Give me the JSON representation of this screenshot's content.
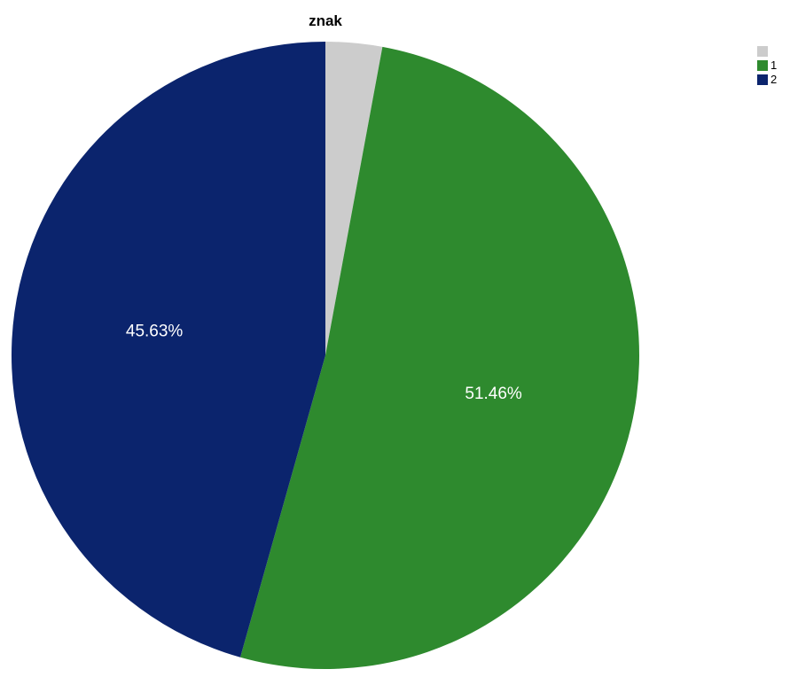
{
  "chart_data": {
    "type": "pie",
    "title": "znak",
    "legend_position": "top-right",
    "slices": [
      {
        "label": "",
        "value": 2.91,
        "value_label": "",
        "color": "#cccccc"
      },
      {
        "label": "1",
        "value": 51.46,
        "value_label": "51.46%",
        "color": "#2e8a2e"
      },
      {
        "label": "2",
        "value": 45.63,
        "value_label": "45.63%",
        "color": "#0b246d"
      }
    ],
    "start_angle": "12 o'clock",
    "direction": "clockwise"
  }
}
